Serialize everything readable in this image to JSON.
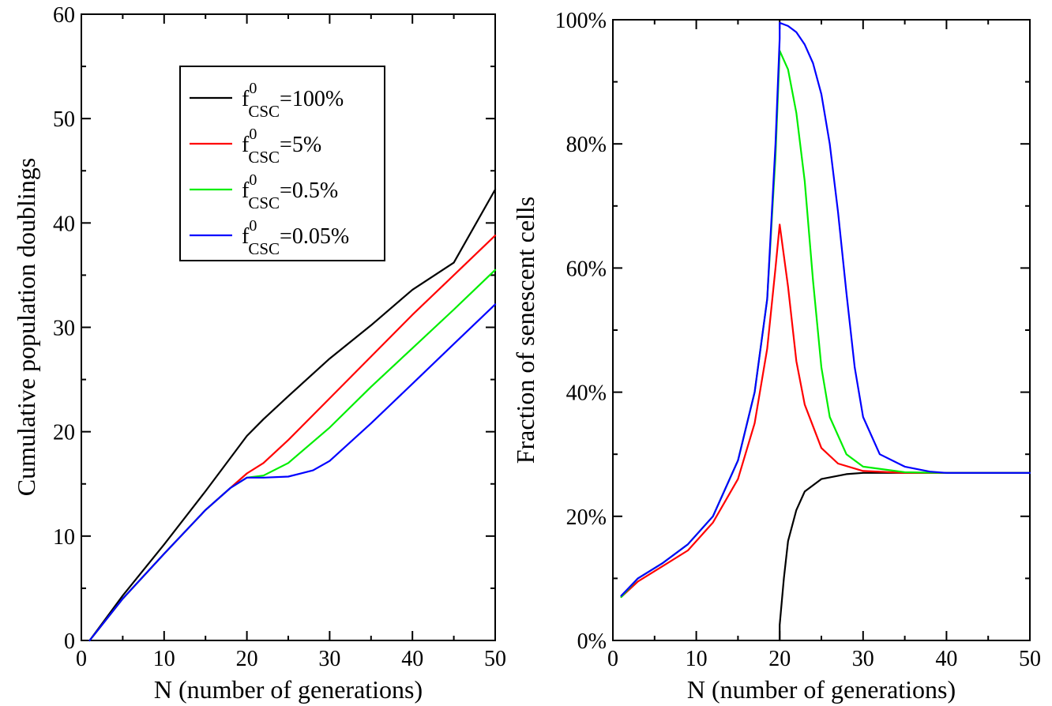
{
  "chart_data": [
    {
      "type": "line",
      "xlabel": "N (number of generations)",
      "ylabel": "Cumulative population doublings",
      "xlim": [
        0,
        50
      ],
      "ylim": [
        0,
        60
      ],
      "x_ticks": [
        "0",
        "10",
        "20",
        "30",
        "40",
        "50"
      ],
      "y_ticks": [
        "0",
        "10",
        "20",
        "30",
        "40",
        "50",
        "60"
      ],
      "grid": false,
      "legend": {
        "position": "top-center",
        "entries": [
          {
            "base": "f",
            "sup": "0",
            "sub": "CSC",
            "value": "=100%"
          },
          {
            "base": "f",
            "sup": "0",
            "sub": "CSC",
            "value": "=5%"
          },
          {
            "base": "f",
            "sup": "0",
            "sub": "CSC",
            "value": "=0.5%"
          },
          {
            "base": "f",
            "sup": "0",
            "sub": "CSC",
            "value": "=0.05%"
          }
        ]
      },
      "series": [
        {
          "color": "#000000",
          "points": [
            [
              1,
              0
            ],
            [
              5,
              4.3
            ],
            [
              10,
              9.2
            ],
            [
              15,
              14.3
            ],
            [
              20,
              19.6
            ],
            [
              22,
              21.2
            ],
            [
              25,
              23.4
            ],
            [
              30,
              27.0
            ],
            [
              35,
              30.2
            ],
            [
              40,
              33.6
            ],
            [
              45,
              36.2
            ],
            [
              50,
              43.2
            ]
          ]
        },
        {
          "color": "#ff0000",
          "points": [
            [
              1,
              0
            ],
            [
              5,
              4.0
            ],
            [
              10,
              8.3
            ],
            [
              15,
              12.5
            ],
            [
              18,
              14.6
            ],
            [
              20,
              16.0
            ],
            [
              22,
              17.0
            ],
            [
              25,
              19.2
            ],
            [
              30,
              23.2
            ],
            [
              35,
              27.2
            ],
            [
              40,
              31.2
            ],
            [
              45,
              35.0
            ],
            [
              50,
              38.8
            ]
          ]
        },
        {
          "color": "#00ee00",
          "points": [
            [
              1,
              0
            ],
            [
              5,
              4.0
            ],
            [
              10,
              8.3
            ],
            [
              15,
              12.5
            ],
            [
              18,
              14.6
            ],
            [
              20,
              15.6
            ],
            [
              22,
              15.8
            ],
            [
              25,
              17.0
            ],
            [
              30,
              20.4
            ],
            [
              35,
              24.3
            ],
            [
              40,
              28.0
            ],
            [
              45,
              31.7
            ],
            [
              50,
              35.5
            ]
          ]
        },
        {
          "color": "#0000ff",
          "points": [
            [
              1,
              0
            ],
            [
              5,
              4.0
            ],
            [
              10,
              8.3
            ],
            [
              15,
              12.5
            ],
            [
              18,
              14.6
            ],
            [
              20,
              15.6
            ],
            [
              22,
              15.6
            ],
            [
              25,
              15.7
            ],
            [
              28,
              16.3
            ],
            [
              30,
              17.2
            ],
            [
              35,
              20.8
            ],
            [
              40,
              24.6
            ],
            [
              45,
              28.4
            ],
            [
              50,
              32.2
            ]
          ]
        }
      ]
    },
    {
      "type": "line",
      "xlabel": "N (number of generations)",
      "ylabel": "Fraction of senescent cells",
      "xlim": [
        0,
        50
      ],
      "ylim": [
        0,
        100
      ],
      "x_ticks": [
        "0",
        "10",
        "20",
        "30",
        "40",
        "50"
      ],
      "y_ticks": [
        "0%",
        "20%",
        "40%",
        "60%",
        "80%",
        "100%"
      ],
      "grid": false,
      "series": [
        {
          "color": "#000000",
          "points": [
            [
              20,
              0
            ],
            [
              20,
              2.5
            ],
            [
              20.5,
              10
            ],
            [
              21,
              16
            ],
            [
              22,
              21
            ],
            [
              23,
              24
            ],
            [
              25,
              26
            ],
            [
              28,
              26.8
            ],
            [
              30,
              27
            ],
            [
              35,
              27
            ],
            [
              40,
              27
            ],
            [
              45,
              27
            ],
            [
              50,
              27
            ]
          ]
        },
        {
          "color": "#ff0000",
          "points": [
            [
              1,
              7
            ],
            [
              3,
              9.5
            ],
            [
              6,
              12
            ],
            [
              9,
              14.5
            ],
            [
              12,
              19
            ],
            [
              15,
              26
            ],
            [
              17,
              35
            ],
            [
              18.5,
              47
            ],
            [
              19.5,
              60
            ],
            [
              20,
              67
            ],
            [
              21,
              57
            ],
            [
              22,
              45
            ],
            [
              23,
              38
            ],
            [
              25,
              31
            ],
            [
              27,
              28.5
            ],
            [
              30,
              27.3
            ],
            [
              35,
              27
            ],
            [
              40,
              27
            ],
            [
              45,
              27
            ],
            [
              50,
              27
            ]
          ]
        },
        {
          "color": "#00ee00",
          "points": [
            [
              1,
              7
            ],
            [
              3,
              10
            ],
            [
              6,
              12.5
            ],
            [
              9,
              15.5
            ],
            [
              12,
              20
            ],
            [
              15,
              29
            ],
            [
              17,
              40
            ],
            [
              18.5,
              55
            ],
            [
              19.5,
              78
            ],
            [
              20,
              95
            ],
            [
              21,
              92
            ],
            [
              22,
              85
            ],
            [
              23,
              74
            ],
            [
              24,
              58
            ],
            [
              25,
              44
            ],
            [
              26,
              36
            ],
            [
              28,
              30
            ],
            [
              30,
              28
            ],
            [
              35,
              27.1
            ],
            [
              40,
              27
            ],
            [
              45,
              27
            ],
            [
              50,
              27
            ]
          ]
        },
        {
          "color": "#0000ff",
          "points": [
            [
              1,
              7.2
            ],
            [
              3,
              10
            ],
            [
              6,
              12.5
            ],
            [
              9,
              15.5
            ],
            [
              12,
              20
            ],
            [
              15,
              29
            ],
            [
              17,
              40
            ],
            [
              18.5,
              55
            ],
            [
              19.5,
              80
            ],
            [
              20,
              97
            ],
            [
              20,
              99.5
            ],
            [
              21,
              99
            ],
            [
              22,
              98
            ],
            [
              23,
              96
            ],
            [
              24,
              93
            ],
            [
              25,
              88
            ],
            [
              26,
              80
            ],
            [
              27,
              69
            ],
            [
              28,
              56
            ],
            [
              29,
              44
            ],
            [
              30,
              36
            ],
            [
              32,
              30
            ],
            [
              35,
              28
            ],
            [
              38,
              27.2
            ],
            [
              40,
              27
            ],
            [
              45,
              27
            ],
            [
              50,
              27
            ]
          ]
        }
      ]
    }
  ]
}
